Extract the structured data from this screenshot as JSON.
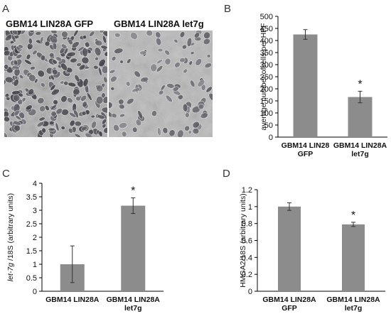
{
  "panels": {
    "a": {
      "label": "A",
      "left_title": "GBM14 LIN28A GFP",
      "right_title": "GBM14 LIN28A let7g"
    },
    "b": {
      "label": "B"
    },
    "c": {
      "label": "C"
    },
    "d": {
      "label": "D"
    }
  },
  "colors": {
    "bar": "#8c8c8c",
    "axis": "#000000"
  },
  "chart_data": [
    {
      "id": "b",
      "type": "bar",
      "categories": [
        [
          "GBM14 LIN28",
          "GFP"
        ],
        [
          "GBM14 LIN28A",
          "let7g"
        ]
      ],
      "values": [
        425,
        166
      ],
      "errors": [
        20,
        24
      ],
      "significance": [
        "",
        "*"
      ],
      "ylabel": "average number ofcells per HPF",
      "ylim": [
        0,
        500
      ],
      "yticks": [
        0,
        50,
        100,
        150,
        200,
        250,
        300,
        350,
        400,
        450,
        500
      ],
      "grid": false
    },
    {
      "id": "c",
      "type": "bar",
      "categories": [
        [
          "GBM14 LIN28A"
        ],
        [
          "GBM14 LIN28A",
          "let7g"
        ]
      ],
      "values": [
        1.0,
        3.17
      ],
      "errors": [
        0.68,
        0.29
      ],
      "significance": [
        "",
        "*"
      ],
      "ylabel_italic": "let-7g",
      "ylabel": " /18S (arbitrary units)",
      "ylim": [
        0,
        4
      ],
      "yticks": [
        0,
        0.5,
        1,
        1.5,
        2,
        2.5,
        3,
        3.5,
        4
      ],
      "grid": false
    },
    {
      "id": "d",
      "type": "bar",
      "categories": [
        [
          "GBM14 LIN28A",
          "GFP"
        ],
        [
          "GBM14 LIN28A",
          "let7g"
        ]
      ],
      "values": [
        1.0,
        0.79
      ],
      "errors": [
        0.045,
        0.025
      ],
      "significance": [
        "",
        "*"
      ],
      "ylabel": "HMGA2/18S (arbitrary units)",
      "ylim": [
        0,
        1.2
      ],
      "yticks": [
        0,
        0.2,
        0.4,
        0.6,
        0.8,
        1,
        1.2
      ],
      "grid": false
    }
  ]
}
